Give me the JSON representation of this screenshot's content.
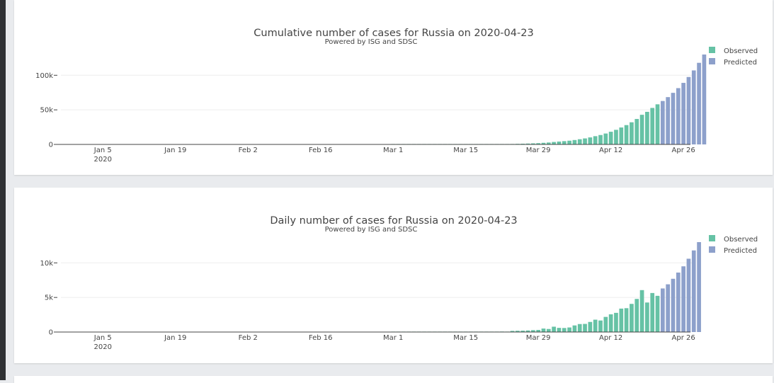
{
  "colors": {
    "observed": "#66c2a5",
    "predicted": "#8da0cb"
  },
  "chart_data": [
    {
      "type": "bar",
      "title": "Cumulative number of cases for Russia on 2020-04-23",
      "subtitle": "Powered by ISG and SDSC",
      "x_start": "2020-01-01",
      "ylim": [
        0,
        130000
      ],
      "yticks": [
        {
          "value": 0,
          "label": "0"
        },
        {
          "value": 50000,
          "label": "50k"
        },
        {
          "value": 100000,
          "label": "100k"
        }
      ],
      "xticks": [
        "Jan 5",
        "Jan 19",
        "Feb 2",
        "Feb 16",
        "Mar 1",
        "Mar 15",
        "Mar 29",
        "Apr 12",
        "Apr 26"
      ],
      "xtick_year": "2020",
      "legend_position": "top-right",
      "series": [
        {
          "name": "Observed",
          "color": "observed",
          "start": "2020-03-01",
          "values": [
            3,
            3,
            3,
            3,
            4,
            10,
            14,
            17,
            20,
            28,
            34,
            45,
            59,
            63,
            90,
            114,
            147,
            199,
            253,
            306,
            367,
            438,
            495,
            658,
            840,
            1036,
            1264,
            1534,
            1836,
            2337,
            2777,
            3548,
            4149,
            4731,
            5389,
            6343,
            7497,
            8672,
            10131,
            11917,
            13584,
            15770,
            18328,
            21102,
            24490,
            27938,
            32008,
            36793,
            42853,
            47121,
            52763,
            57999
          ]
        },
        {
          "name": "Predicted",
          "color": "predicted",
          "start": "2020-04-22",
          "values": [
            62800,
            68400,
            74600,
            81400,
            89000,
            97500,
            107000,
            118000,
            130000
          ]
        }
      ]
    },
    {
      "type": "bar",
      "title": "Daily number of cases for Russia on 2020-04-23",
      "subtitle": "Powered by ISG and SDSC",
      "x_start": "2020-01-01",
      "ylim": [
        0,
        13000
      ],
      "yticks": [
        {
          "value": 0,
          "label": "0"
        },
        {
          "value": 5000,
          "label": "5k"
        },
        {
          "value": 10000,
          "label": "10k"
        }
      ],
      "xticks": [
        "Jan 5",
        "Jan 19",
        "Feb 2",
        "Feb 16",
        "Mar 1",
        "Mar 15",
        "Mar 29",
        "Apr 12",
        "Apr 26"
      ],
      "xtick_year": "2020",
      "legend_position": "top-right",
      "series": [
        {
          "name": "Observed",
          "color": "observed",
          "start": "2020-03-01",
          "values": [
            1,
            0,
            0,
            0,
            1,
            6,
            4,
            3,
            3,
            8,
            6,
            11,
            14,
            4,
            27,
            24,
            33,
            52,
            54,
            53,
            61,
            71,
            57,
            163,
            182,
            196,
            228,
            270,
            302,
            501,
            440,
            771,
            601,
            582,
            658,
            954,
            1154,
            1175,
            1459,
            1786,
            1667,
            2186,
            2558,
            2774,
            3388,
            3448,
            4070,
            4785,
            6060,
            4268,
            5642,
            5236
          ]
        },
        {
          "name": "Predicted",
          "color": "predicted",
          "start": "2020-04-22",
          "values": [
            6300,
            6900,
            7700,
            8600,
            9500,
            10600,
            11800,
            13000
          ]
        }
      ]
    }
  ]
}
